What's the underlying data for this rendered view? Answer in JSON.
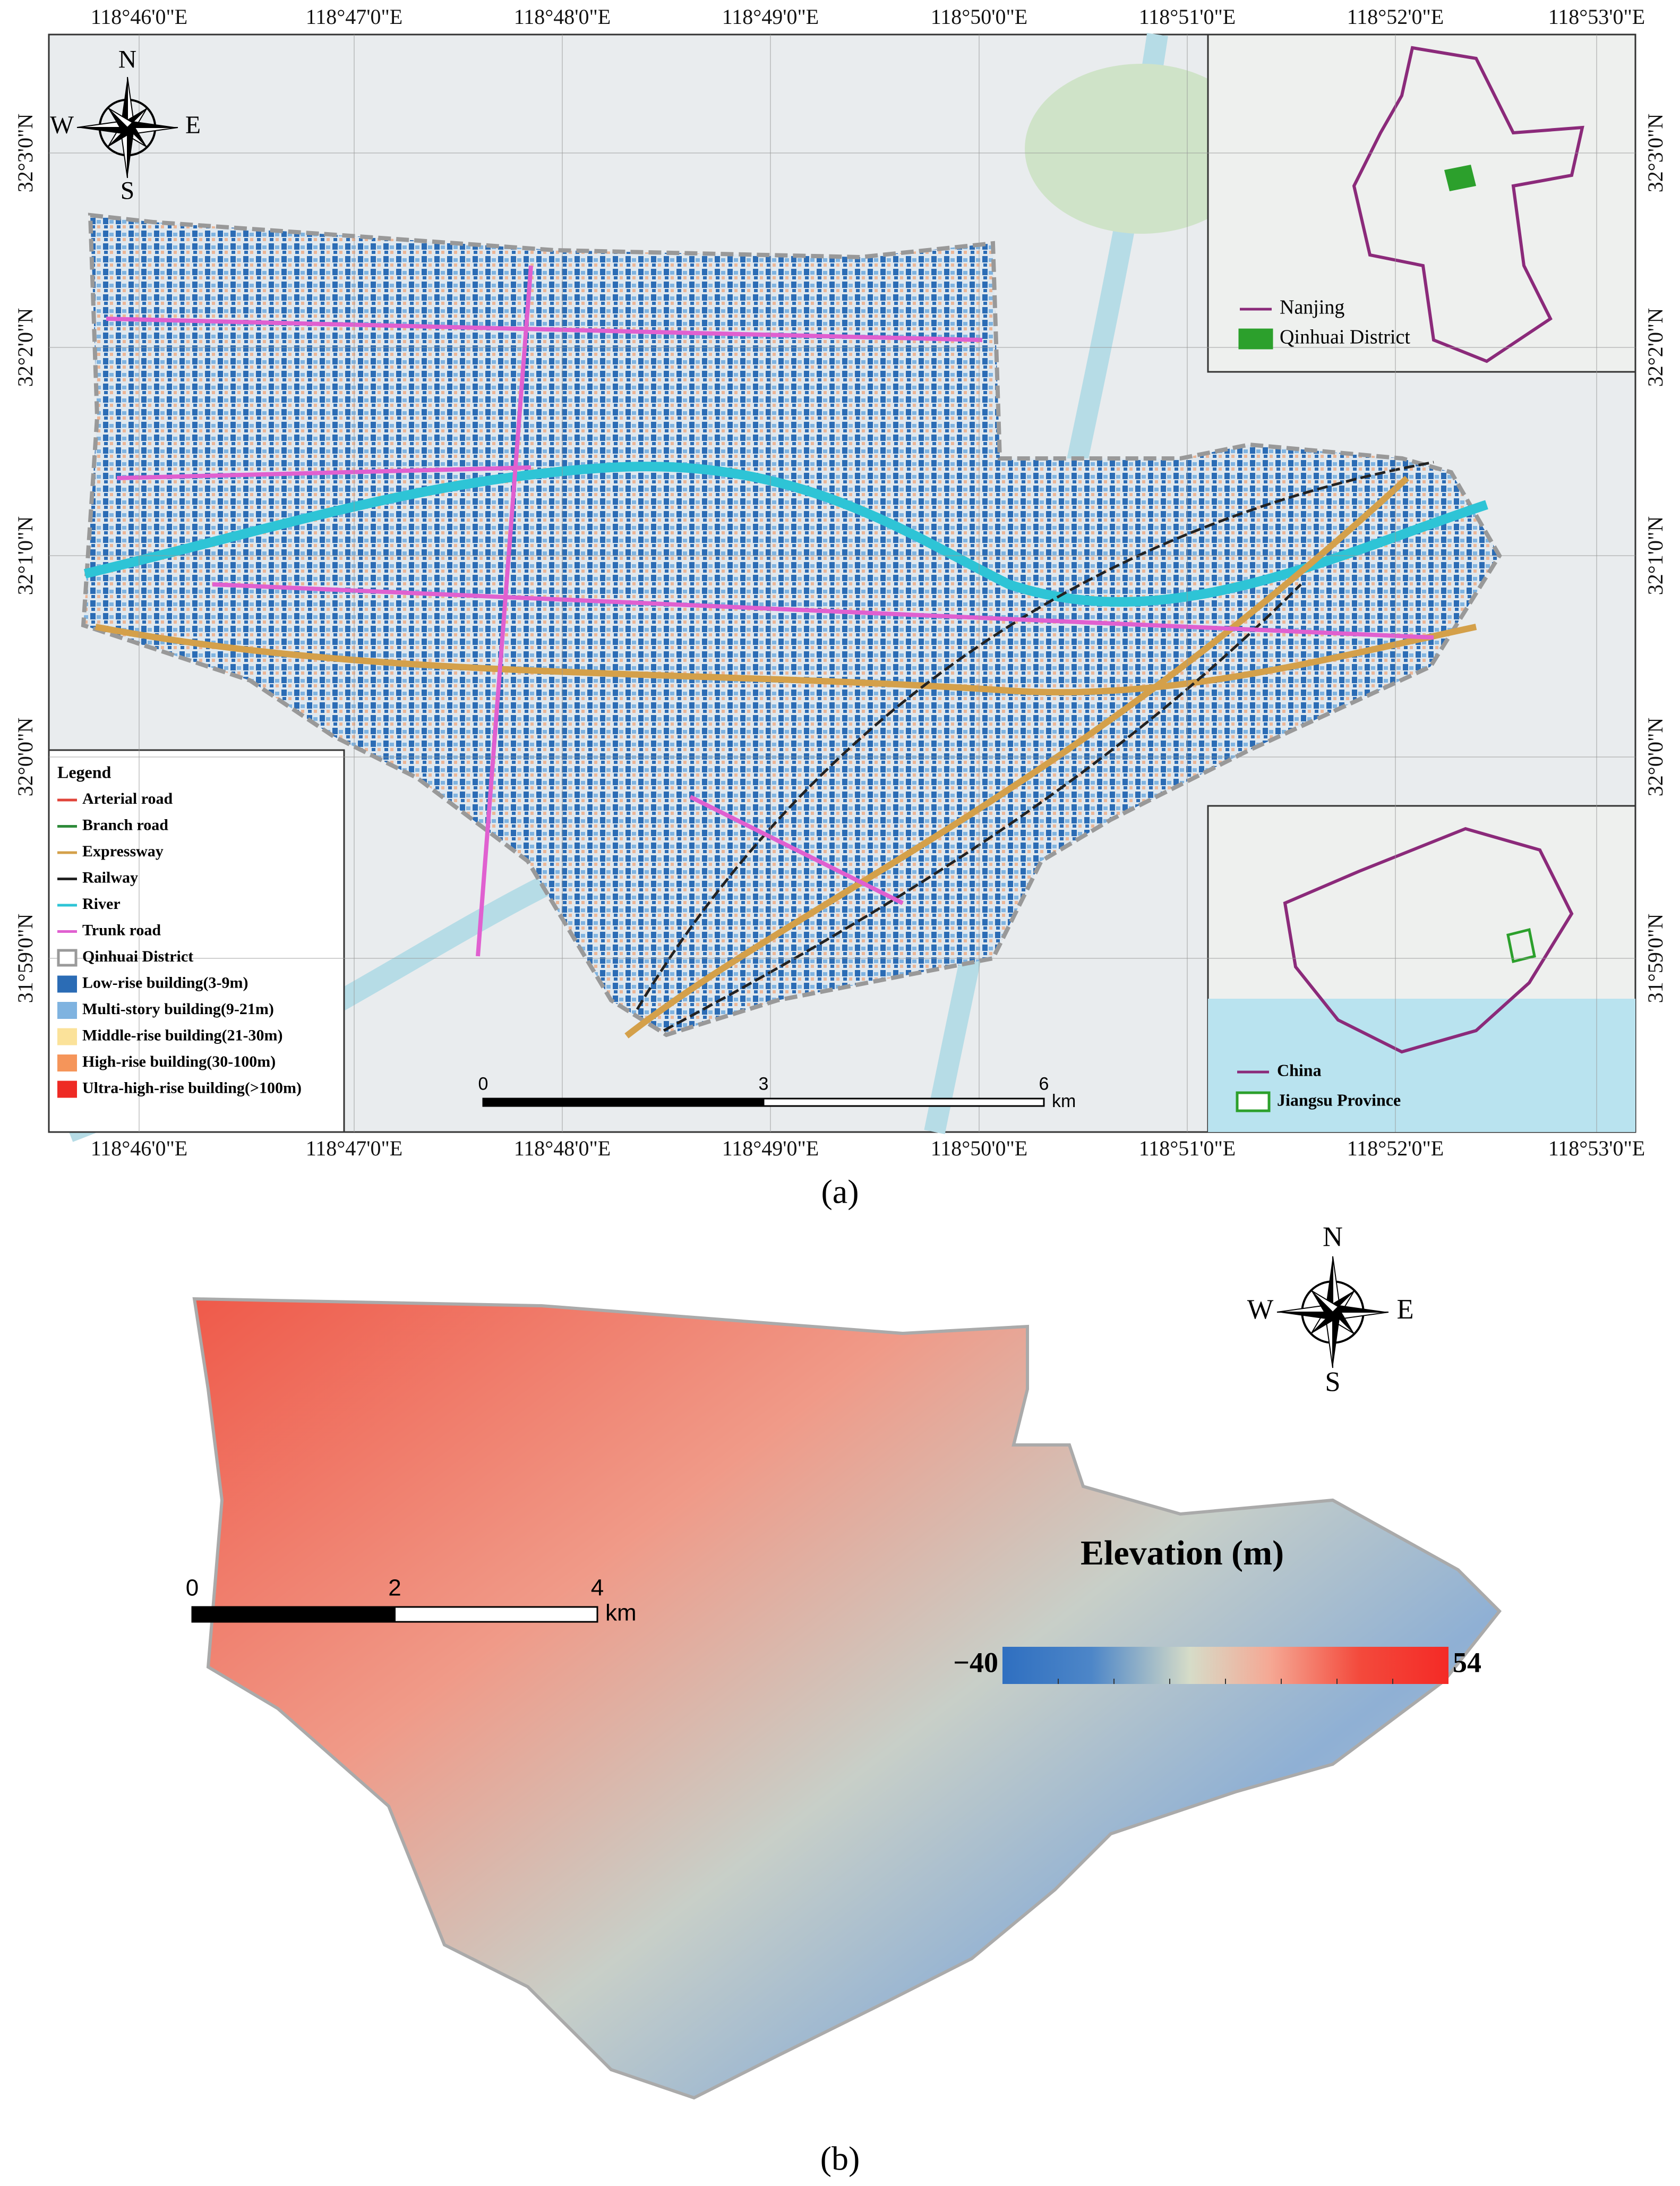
{
  "panel_a": {
    "top_coords": [
      "118°46'0\"E",
      "118°47'0\"E",
      "118°48'0\"E",
      "118°49'0\"E",
      "118°50'0\"E",
      "118°51'0\"E",
      "118°52'0\"E",
      "118°53'0\"E"
    ],
    "bottom_coords": [
      "118°46'0\"E",
      "118°47'0\"E",
      "118°48'0\"E",
      "118°49'0\"E",
      "118°50'0\"E",
      "118°51'0\"E",
      "118°52'0\"E",
      "118°53'0\"E"
    ],
    "left_coords": [
      "32°3'0\"N",
      "32°2'0\"N",
      "32°1'0\"N",
      "32°0'0\"N",
      "31°59'0\"N"
    ],
    "right_coords": [
      "32°3'0\"N",
      "32°2'0\"N",
      "32°1'0\"N",
      "32°0'0\"N",
      "31°59'0\"N"
    ],
    "compass": {
      "n": "N",
      "s": "S",
      "e": "E",
      "w": "W"
    },
    "legend": {
      "title": "Legend",
      "items": [
        {
          "label": "Arterial road",
          "kind": "line",
          "color": "#e0443a"
        },
        {
          "label": "Branch road",
          "kind": "line",
          "color": "#2e8b3a"
        },
        {
          "label": "Expressway",
          "kind": "line",
          "color": "#d4a04a"
        },
        {
          "label": "Railway",
          "kind": "line",
          "color": "#222222"
        },
        {
          "label": "River",
          "kind": "line",
          "color": "#2ec4d6"
        },
        {
          "label": "Trunk road",
          "kind": "line",
          "color": "#e060d0"
        },
        {
          "label": "Qinhuai District",
          "kind": "box",
          "color": "#9a9a9a"
        },
        {
          "label": "Low-rise building(3-9m)",
          "kind": "fill",
          "color": "#2b6cb5"
        },
        {
          "label": "Multi-story building(9-21m)",
          "kind": "fill",
          "color": "#7fb3e0"
        },
        {
          "label": "Middle-rise building(21-30m)",
          "kind": "fill",
          "color": "#fbe29a"
        },
        {
          "label": "High-rise building(30-100m)",
          "kind": "fill",
          "color": "#f5955a"
        },
        {
          "label": "Ultra-high-rise building(>100m)",
          "kind": "fill",
          "color": "#ee2a24"
        }
      ]
    },
    "inset_nanjing": {
      "items": [
        {
          "label": "Nanjing",
          "color": "#8b2a7a"
        },
        {
          "label": "Qinhuai District",
          "color": "#2ca02c"
        }
      ]
    },
    "inset_china": {
      "items": [
        {
          "label": "China",
          "color": "#8b2a7a"
        },
        {
          "label": "Jiangsu Province",
          "color": "#2ca02c"
        }
      ]
    },
    "scale_bar": {
      "ticks": [
        "0",
        "3",
        "6"
      ],
      "unit": "km"
    },
    "caption": "(a)"
  },
  "panel_b": {
    "compass": {
      "n": "N",
      "s": "S",
      "e": "E",
      "w": "W"
    },
    "scale_bar": {
      "ticks": [
        "0",
        "2",
        "4"
      ],
      "unit": "km"
    },
    "colorbar": {
      "title": "Elevation (m)",
      "min_label": "−40",
      "max_label": "54"
    },
    "caption": "(b)"
  }
}
